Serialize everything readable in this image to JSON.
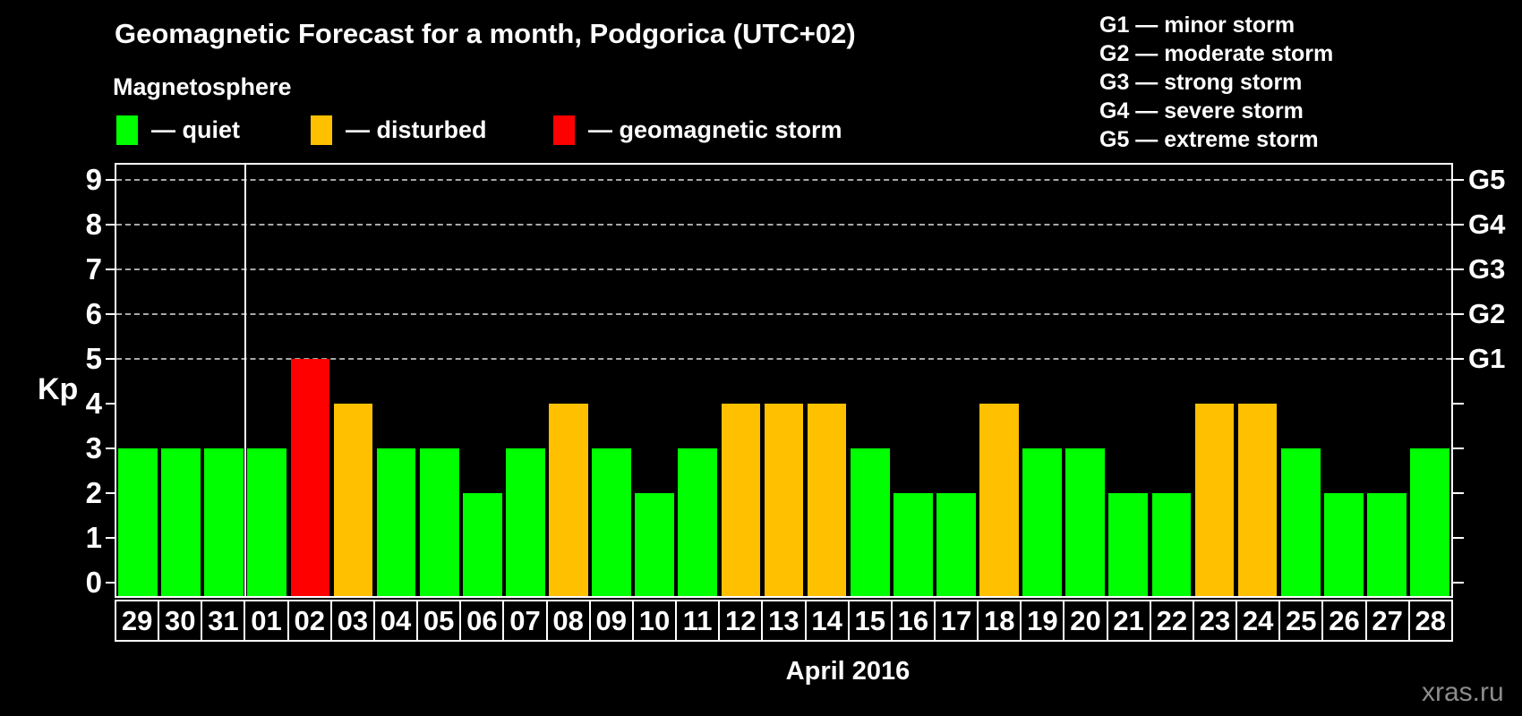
{
  "header": {
    "title": "Geomagnetic Forecast for a month, Podgorica (UTC+02)",
    "subtitle": "Magnetosphere"
  },
  "legend": {
    "items": [
      {
        "key": "quiet",
        "label": "— quiet",
        "color": "#00ff00"
      },
      {
        "key": "disturbed",
        "label": "— disturbed",
        "color": "#ffc000"
      },
      {
        "key": "storm",
        "label": "— geomagnetic storm",
        "color": "#ff0000"
      }
    ]
  },
  "g_scale_legend": {
    "lines": [
      "G1 — minor storm",
      "G2 — moderate storm",
      "G3 — strong storm",
      "G4 — severe storm",
      "G5 — extreme storm"
    ]
  },
  "watermark": "xras.ru",
  "chart_data": {
    "type": "bar",
    "title": "Geomagnetic Forecast for a month, Podgorica (UTC+02)",
    "xlabel": "April 2016",
    "ylabel": "Kp",
    "ylim": [
      0,
      9.4
    ],
    "yticks": [
      0,
      1,
      2,
      3,
      4,
      5,
      6,
      7,
      8,
      9
    ],
    "gridlines_at": [
      5,
      6,
      7,
      8,
      9
    ],
    "grid": true,
    "legend_position": "top-left",
    "right_axis": [
      {
        "kp": 5,
        "label": "G1"
      },
      {
        "kp": 6,
        "label": "G2"
      },
      {
        "kp": 7,
        "label": "G3"
      },
      {
        "kp": 8,
        "label": "G4"
      },
      {
        "kp": 9,
        "label": "G5"
      }
    ],
    "month_separator_before": "01",
    "categories": [
      "29",
      "30",
      "31",
      "01",
      "02",
      "03",
      "04",
      "05",
      "06",
      "07",
      "08",
      "09",
      "10",
      "11",
      "12",
      "13",
      "14",
      "15",
      "16",
      "17",
      "18",
      "19",
      "20",
      "21",
      "22",
      "23",
      "24",
      "25",
      "26",
      "27",
      "28"
    ],
    "series": [
      {
        "name": "Kp forecast",
        "values": [
          3,
          3,
          3,
          3,
          5,
          4,
          3,
          3,
          2,
          3,
          4,
          3,
          2,
          3,
          4,
          4,
          4,
          3,
          2,
          2,
          4,
          3,
          3,
          2,
          2,
          4,
          4,
          3,
          2,
          2,
          3
        ],
        "statuses": [
          "quiet",
          "quiet",
          "quiet",
          "quiet",
          "storm",
          "disturbed",
          "quiet",
          "quiet",
          "quiet",
          "quiet",
          "disturbed",
          "quiet",
          "quiet",
          "quiet",
          "disturbed",
          "disturbed",
          "disturbed",
          "quiet",
          "quiet",
          "quiet",
          "disturbed",
          "quiet",
          "quiet",
          "quiet",
          "quiet",
          "disturbed",
          "disturbed",
          "quiet",
          "quiet",
          "quiet",
          "quiet"
        ]
      }
    ]
  }
}
